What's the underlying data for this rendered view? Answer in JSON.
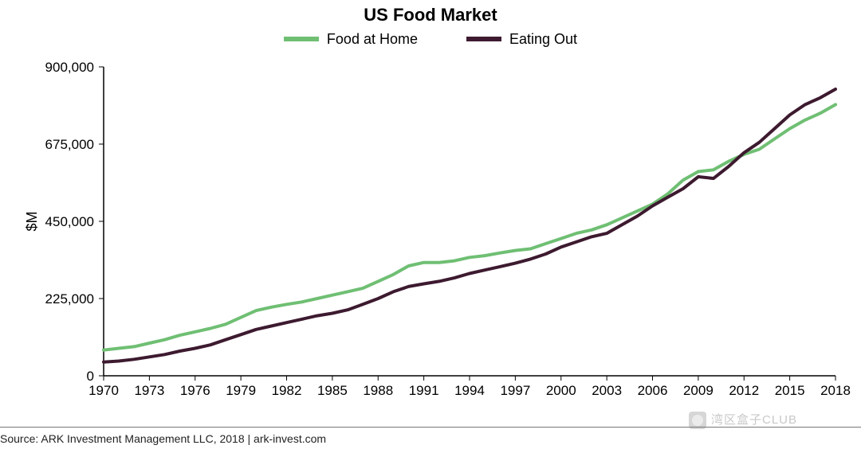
{
  "chart": {
    "type": "line",
    "title": "US Food Market",
    "title_fontsize": 22,
    "title_weight": "700",
    "background_color": "#ffffff",
    "axis_color": "#000000",
    "line_width": 4,
    "ylabel": "$M",
    "ylabel_fontsize": 18,
    "xlim": [
      1970,
      2018
    ],
    "ylim": [
      0,
      900000
    ],
    "ytick_step": 225000,
    "y_ticks": [
      0,
      225000,
      450000,
      675000,
      900000
    ],
    "y_tick_labels": [
      "0",
      "225,000",
      "450,000",
      "675,000",
      "900,000"
    ],
    "x_tick_step": 3,
    "x_ticks": [
      1970,
      1973,
      1976,
      1979,
      1982,
      1985,
      1988,
      1991,
      1994,
      1997,
      2000,
      2003,
      2006,
      2009,
      2012,
      2015,
      2018
    ],
    "grid": false,
    "tick_fontsize": 17,
    "legend": {
      "position": "top-center",
      "items": [
        {
          "label": "Food at Home",
          "color": "#6fbf73"
        },
        {
          "label": "Eating Out",
          "color": "#3d1a2f"
        }
      ]
    },
    "series": [
      {
        "name": "Food at Home",
        "color": "#6fbf73",
        "line_width": 4,
        "x": [
          1970,
          1971,
          1972,
          1973,
          1974,
          1975,
          1976,
          1977,
          1978,
          1979,
          1980,
          1981,
          1982,
          1983,
          1984,
          1985,
          1986,
          1987,
          1988,
          1989,
          1990,
          1991,
          1992,
          1993,
          1994,
          1995,
          1996,
          1997,
          1998,
          1999,
          2000,
          2001,
          2002,
          2003,
          2004,
          2005,
          2006,
          2007,
          2008,
          2009,
          2010,
          2011,
          2012,
          2013,
          2014,
          2015,
          2016,
          2017,
          2018
        ],
        "y": [
          75000,
          80000,
          85000,
          95000,
          105000,
          118000,
          128000,
          138000,
          150000,
          170000,
          190000,
          200000,
          208000,
          215000,
          225000,
          235000,
          245000,
          255000,
          275000,
          295000,
          320000,
          330000,
          330000,
          335000,
          345000,
          350000,
          358000,
          365000,
          370000,
          385000,
          400000,
          415000,
          425000,
          440000,
          460000,
          480000,
          500000,
          530000,
          570000,
          595000,
          600000,
          625000,
          645000,
          660000,
          690000,
          720000,
          745000,
          765000,
          790000
        ]
      },
      {
        "name": "Eating Out",
        "color": "#3d1a2f",
        "line_width": 4,
        "x": [
          1970,
          1971,
          1972,
          1973,
          1974,
          1975,
          1976,
          1977,
          1978,
          1979,
          1980,
          1981,
          1982,
          1983,
          1984,
          1985,
          1986,
          1987,
          1988,
          1989,
          1990,
          1991,
          1992,
          1993,
          1994,
          1995,
          1996,
          1997,
          1998,
          1999,
          2000,
          2001,
          2002,
          2003,
          2004,
          2005,
          2006,
          2007,
          2008,
          2009,
          2010,
          2011,
          2012,
          2013,
          2014,
          2015,
          2016,
          2017,
          2018
        ],
        "y": [
          40000,
          43000,
          48000,
          55000,
          62000,
          72000,
          80000,
          90000,
          105000,
          120000,
          135000,
          145000,
          155000,
          165000,
          175000,
          182000,
          192000,
          208000,
          225000,
          245000,
          260000,
          268000,
          275000,
          285000,
          298000,
          308000,
          318000,
          328000,
          340000,
          355000,
          375000,
          390000,
          405000,
          415000,
          440000,
          465000,
          495000,
          520000,
          545000,
          580000,
          575000,
          610000,
          650000,
          680000,
          720000,
          760000,
          790000,
          810000,
          835000
        ]
      }
    ]
  },
  "source_line": "Source:  ARK Investment Management LLC, 2018  |  ark-invest.com",
  "watermark_text": "湾区盒子CLUB"
}
